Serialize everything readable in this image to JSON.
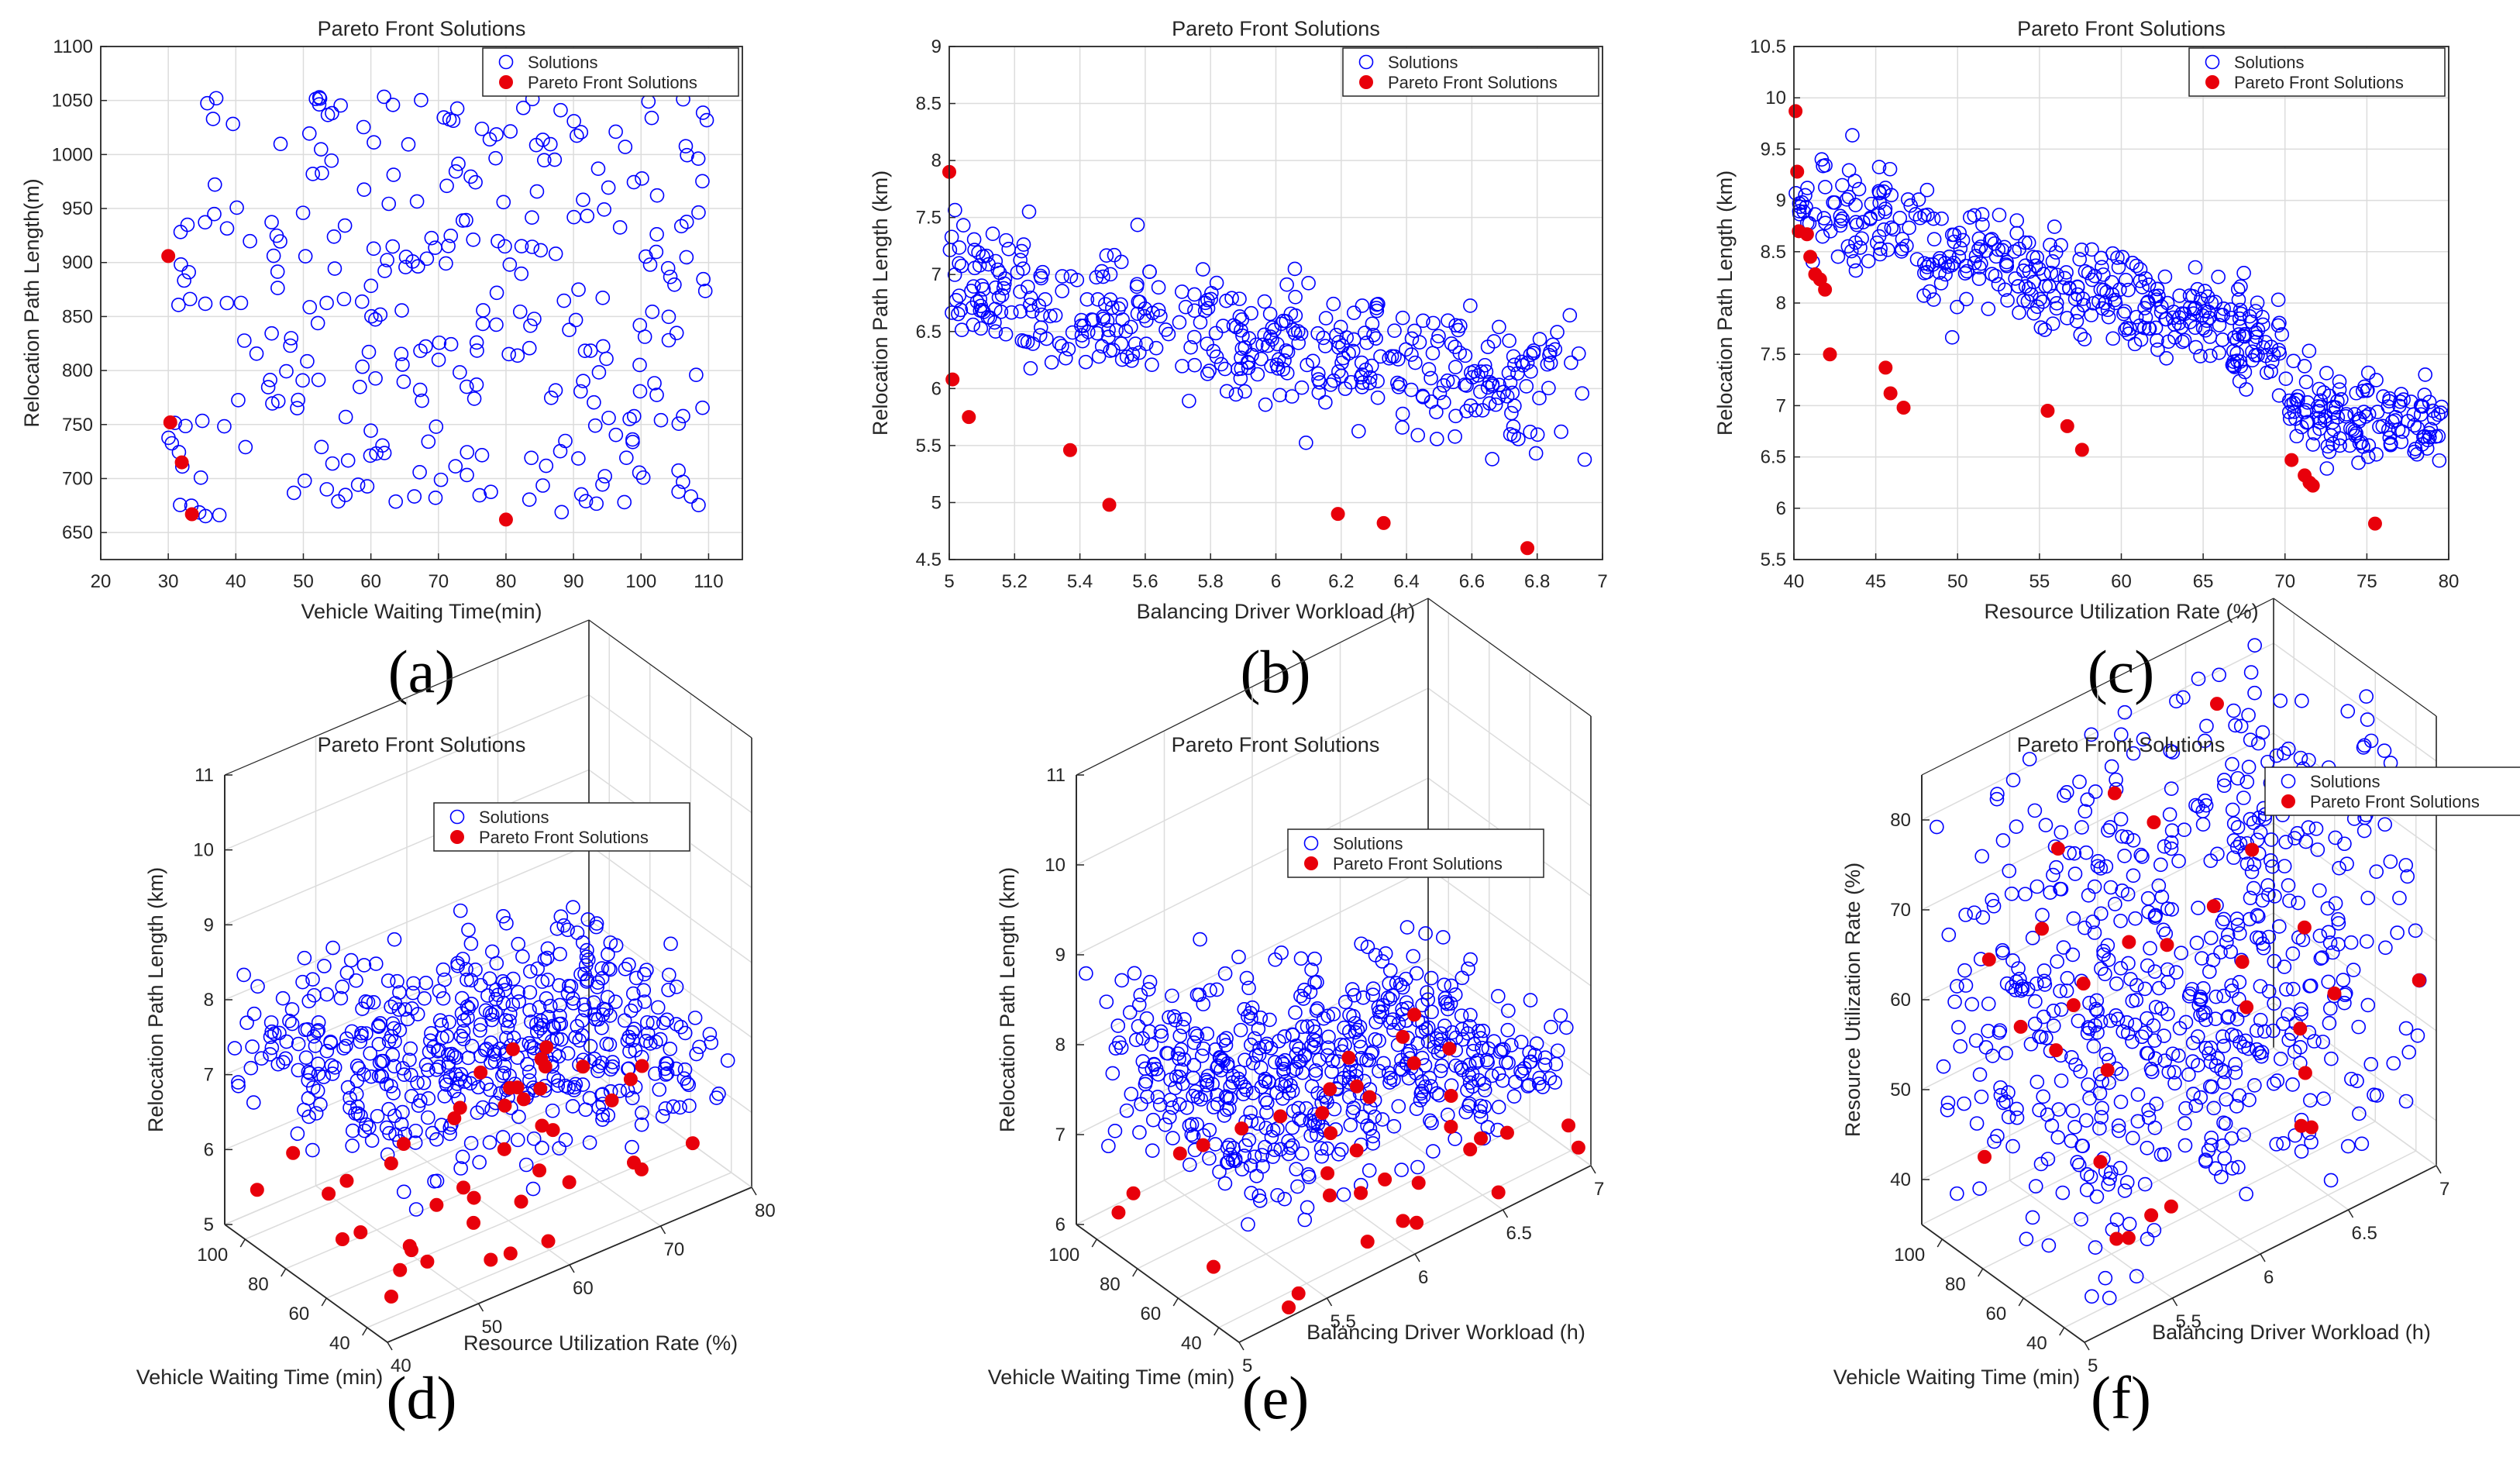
{
  "figure": {
    "panels": [
      {
        "id": "a",
        "label": "(a)",
        "title": "Pareto Front Solutions",
        "kind": "2d",
        "xlabel": "Vehicle Waiting Time(min)",
        "ylabel": "Relocation Path Length(m)",
        "legend": [
          "Solutions",
          "Pareto Front Solutions"
        ]
      },
      {
        "id": "b",
        "label": "(b)",
        "title": "Pareto Front Solutions",
        "kind": "2d",
        "xlabel": "Balancing Driver Workload (h)",
        "ylabel": "Relocation Path Length (km)",
        "legend": [
          "Solutions",
          "Pareto Front Solutions"
        ]
      },
      {
        "id": "c",
        "label": "(c)",
        "title": "Pareto Front Solutions",
        "kind": "2d",
        "xlabel": "Resource Utilization Rate (%)",
        "ylabel": "Relocation Path Length (km)",
        "legend": [
          "Solutions",
          "Pareto Front Solutions"
        ]
      },
      {
        "id": "d",
        "label": "(d)",
        "title": "Pareto Front Solutions",
        "kind": "3d",
        "xlabel": "Vehicle Waiting Time (min)",
        "ylabel": "Resource Utilization Rate (%)",
        "zlabel": "Relocation Path Length (km)",
        "legend": [
          "Solutions",
          "Pareto Front Solutions"
        ]
      },
      {
        "id": "e",
        "label": "(e)",
        "title": "Pareto Front Solutions",
        "kind": "3d",
        "xlabel": "Vehicle Waiting Time (min)",
        "ylabel": "Balancing Driver Workload (h)",
        "zlabel": "Relocation Path Length (km)",
        "legend": [
          "Solutions",
          "Pareto Front Solutions"
        ]
      },
      {
        "id": "f",
        "label": "(f)",
        "title": "Pareto Front Solutions",
        "kind": "3d",
        "xlabel": "Vehicle Waiting Time (min)",
        "ylabel": "Balancing Driver Workload (h)",
        "zlabel": "Resource Utilization Rate (%)",
        "legend": [
          "Solutions",
          "Pareto Front Solutions"
        ]
      }
    ]
  },
  "chart_data": [
    {
      "type": "scatter",
      "panel": "a",
      "title": "Pareto Front Solutions",
      "xlabel": "Vehicle Waiting Time(min)",
      "ylabel": "Relocation Path Length(m)",
      "xlim": [
        20,
        115
      ],
      "ylim": [
        625,
        1100
      ],
      "xticks": [
        20,
        30,
        40,
        50,
        60,
        70,
        80,
        90,
        100,
        110
      ],
      "yticks": [
        650,
        700,
        750,
        800,
        850,
        900,
        950,
        1000,
        1050,
        1100
      ],
      "grid": true,
      "legend_position": "top-right",
      "series": [
        {
          "name": "Solutions",
          "marker": "open-circle",
          "color": "#0000ff",
          "generated": {
            "n": 300,
            "seed": 11,
            "model": "uniform"
          }
        },
        {
          "name": "Pareto Front Solutions",
          "marker": "filled-circle",
          "color": "#e8000b",
          "points": [
            [
              30,
              906
            ],
            [
              30.3,
              752
            ],
            [
              32,
              715
            ],
            [
              33.5,
              667
            ],
            [
              80,
              662
            ]
          ]
        }
      ]
    },
    {
      "type": "scatter",
      "panel": "b",
      "title": "Pareto Front Solutions",
      "xlabel": "Balancing Driver Workload (h)",
      "ylabel": "Relocation Path Length (km)",
      "xlim": [
        5,
        7
      ],
      "ylim": [
        4.5,
        9
      ],
      "xticks": [
        5,
        5.2,
        5.4,
        5.6,
        5.8,
        6,
        6.2,
        6.4,
        6.6,
        6.8,
        7
      ],
      "yticks": [
        4.5,
        5,
        5.5,
        6,
        6.5,
        7,
        7.5,
        8,
        8.5,
        9
      ],
      "grid": true,
      "legend_position": "top-right",
      "series": [
        {
          "name": "Solutions",
          "marker": "open-circle",
          "color": "#0000ff",
          "generated": {
            "n": 420,
            "seed": 23,
            "model": "decreasing",
            "yAtXmin": 6.9,
            "yAtXmax": 5.9,
            "spread": 0.55
          }
        },
        {
          "name": "Pareto Front Solutions",
          "marker": "filled-circle",
          "color": "#e8000b",
          "points": [
            [
              5,
              7.9
            ],
            [
              5.01,
              6.08
            ],
            [
              5.06,
              5.75
            ],
            [
              5.37,
              5.46
            ],
            [
              5.49,
              4.98
            ],
            [
              6.19,
              4.9
            ],
            [
              6.33,
              4.82
            ],
            [
              6.77,
              4.6
            ]
          ]
        }
      ]
    },
    {
      "type": "scatter",
      "panel": "c",
      "title": "Pareto Front Solutions",
      "xlabel": "Resource Utilization Rate (%)",
      "ylabel": "Relocation Path Length (km)",
      "xlim": [
        40,
        80
      ],
      "ylim": [
        5.5,
        10.5
      ],
      "xticks": [
        40,
        45,
        50,
        55,
        60,
        65,
        70,
        75,
        80
      ],
      "yticks": [
        5.5,
        6,
        6.5,
        7,
        7.5,
        8,
        8.5,
        9,
        9.5,
        10,
        10.5
      ],
      "grid": true,
      "legend_position": "top-right",
      "series": [
        {
          "name": "Solutions",
          "marker": "open-circle",
          "color": "#0000ff",
          "generated": {
            "n": 520,
            "seed": 37,
            "model": "piecewise",
            "spread": 0.45
          }
        },
        {
          "name": "Pareto Front Solutions",
          "marker": "filled-circle",
          "color": "#e8000b",
          "points": [
            [
              40.1,
              9.87
            ],
            [
              40.2,
              9.28
            ],
            [
              40.3,
              8.7
            ],
            [
              40.8,
              8.67
            ],
            [
              41,
              8.45
            ],
            [
              41.3,
              8.28
            ],
            [
              41.6,
              8.23
            ],
            [
              41.9,
              8.13
            ],
            [
              42.2,
              7.5
            ],
            [
              45.6,
              7.37
            ],
            [
              45.9,
              7.12
            ],
            [
              46.7,
              6.98
            ],
            [
              55.5,
              6.95
            ],
            [
              56.7,
              6.8
            ],
            [
              57.6,
              6.57
            ],
            [
              70.4,
              6.47
            ],
            [
              71.2,
              6.32
            ],
            [
              71.5,
              6.25
            ],
            [
              71.7,
              6.22
            ],
            [
              75.5,
              5.85
            ]
          ]
        }
      ]
    },
    {
      "type": "scatter3d",
      "panel": "d",
      "title": "Pareto Front Solutions",
      "xlabel": "Vehicle Waiting Time (min)",
      "ylabel": "Resource Utilization Rate (%)",
      "zlabel": "Relocation Path Length (km)",
      "xlim": [
        30,
        110
      ],
      "ylim": [
        40,
        80
      ],
      "zlim": [
        5,
        11
      ],
      "xticks": [
        40,
        60,
        80,
        100
      ],
      "yticks": [
        40,
        50,
        60,
        70,
        80
      ],
      "zticks": [
        5,
        6,
        7,
        8,
        9,
        10,
        11
      ],
      "grid": true,
      "legend_position": "top-right",
      "series": [
        {
          "name": "Solutions",
          "marker": "open-circle",
          "color": "#0000ff",
          "generated": {
            "n": 520,
            "seed": 41,
            "model": "cloud3d",
            "zmean": 7.6,
            "zspread": 0.9,
            "zslope": -0.025
          }
        },
        {
          "name": "Pareto Front Solutions",
          "marker": "filled-circle",
          "color": "#e8000b",
          "generated": {
            "n": 45,
            "seed": 43,
            "model": "front3d",
            "zmin": 5.2,
            "zmax": 6.2
          }
        }
      ]
    },
    {
      "type": "scatter3d",
      "panel": "e",
      "title": "Pareto Front Solutions",
      "xlabel": "Vehicle Waiting Time (min)",
      "ylabel": "Balancing Driver Workload (h)",
      "zlabel": "Relocation Path Length (km)",
      "xlim": [
        30,
        110
      ],
      "ylim": [
        5,
        7
      ],
      "zlim": [
        6,
        11
      ],
      "xticks": [
        40,
        60,
        80,
        100
      ],
      "yticks": [
        5,
        5.5,
        6,
        6.5,
        7
      ],
      "zticks": [
        6,
        7,
        8,
        9,
        10,
        11
      ],
      "grid": true,
      "legend_position": "top-right",
      "series": [
        {
          "name": "Solutions",
          "marker": "open-circle",
          "color": "#0000ff",
          "generated": {
            "n": 560,
            "seed": 53,
            "model": "cloud3d",
            "zmean": 8.0,
            "zspread": 0.9,
            "zslope": -0.6
          }
        },
        {
          "name": "Pareto Front Solutions",
          "marker": "filled-circle",
          "color": "#e8000b",
          "generated": {
            "n": 36,
            "seed": 59,
            "model": "front3d",
            "zmin": 6.0,
            "zmax": 6.9
          }
        }
      ]
    },
    {
      "type": "scatter3d",
      "panel": "f",
      "title": "Pareto Front Solutions",
      "xlabel": "Vehicle Waiting Time (min)",
      "ylabel": "Balancing Driver Workload (h)",
      "zlabel": "Resource Utilization Rate (%)",
      "xlim": [
        30,
        110
      ],
      "ylim": [
        5,
        7
      ],
      "zlim": [
        35,
        85
      ],
      "xticks": [
        40,
        60,
        80,
        100
      ],
      "yticks": [
        5,
        5.5,
        6,
        6.5,
        7
      ],
      "zticks": [
        40,
        50,
        60,
        70,
        80
      ],
      "grid": true,
      "legend_position": "top-right",
      "series": [
        {
          "name": "Solutions",
          "marker": "open-circle",
          "color": "#0000ff",
          "generated": {
            "n": 620,
            "seed": 61,
            "model": "uniform3d"
          }
        },
        {
          "name": "Pareto Front Solutions",
          "marker": "filled-circle",
          "color": "#e8000b",
          "generated": {
            "n": 30,
            "seed": 67,
            "model": "uniform3d"
          }
        }
      ]
    }
  ]
}
